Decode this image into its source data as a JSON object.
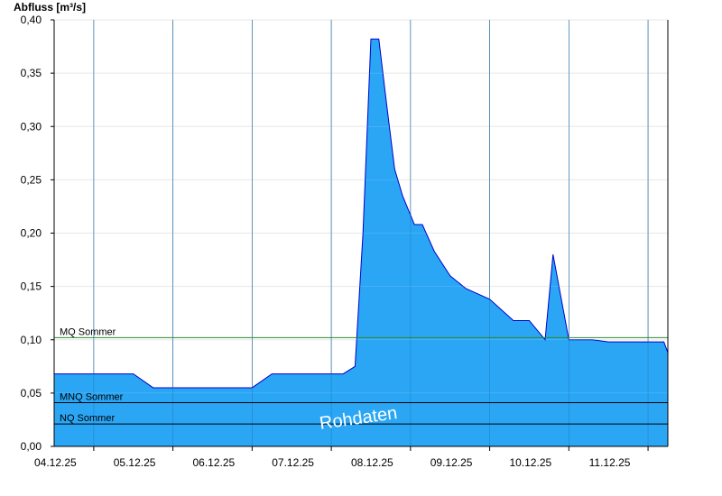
{
  "chart_data": {
    "type": "area",
    "ylabel": "Abfluss [m³/s]",
    "ylim": [
      0,
      0.4
    ],
    "yticks": [
      "0,00",
      "0,05",
      "0,10",
      "0,15",
      "0,20",
      "0,25",
      "0,30",
      "0,35",
      "0,40"
    ],
    "xlim_days": [
      0,
      7.75
    ],
    "xticks": [
      "04.12.25",
      "05.12.25",
      "06.12.25",
      "07.12.25",
      "08.12.25",
      "09.12.25",
      "10.12.25",
      "11.12.25"
    ],
    "grid": true,
    "fill_color": "#2aa6f5",
    "line_color": "#0000cc",
    "series": [
      {
        "x": [
          0.0,
          0.5,
          1.0,
          1.25,
          1.5,
          2.0,
          2.25,
          2.5,
          2.75,
          3.0,
          3.25,
          3.5,
          3.65,
          3.8,
          3.9,
          4.0,
          4.1,
          4.2,
          4.3,
          4.4,
          4.55,
          4.65,
          4.8,
          5.0,
          5.2,
          5.5,
          5.8,
          6.0,
          6.2,
          6.3,
          6.4,
          6.5,
          6.8,
          7.0,
          7.3,
          7.5,
          7.7,
          7.75
        ],
        "y": [
          0.068,
          0.068,
          0.068,
          0.055,
          0.055,
          0.055,
          0.055,
          0.055,
          0.068,
          0.068,
          0.068,
          0.068,
          0.068,
          0.075,
          0.2,
          0.382,
          0.382,
          0.32,
          0.26,
          0.235,
          0.208,
          0.208,
          0.183,
          0.16,
          0.148,
          0.138,
          0.118,
          0.118,
          0.1,
          0.18,
          0.14,
          0.1,
          0.1,
          0.098,
          0.098,
          0.098,
          0.098,
          0.088
        ]
      }
    ],
    "reference_lines": [
      {
        "label": "MQ Sommer",
        "value": 0.102,
        "color": "#2e8b2e"
      },
      {
        "label": "MNQ Sommer",
        "value": 0.041,
        "color": "#000000"
      },
      {
        "label": "NQ Sommer",
        "value": 0.021,
        "color": "#000000"
      }
    ],
    "annotation": "Rohdaten"
  }
}
